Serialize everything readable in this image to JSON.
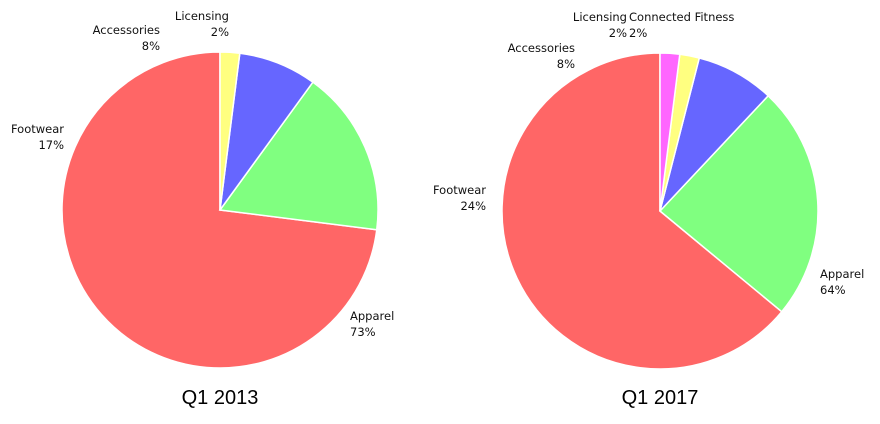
{
  "chart_data": [
    {
      "type": "pie",
      "title": "Q1 2013",
      "slices": [
        {
          "label": "Apparel",
          "value_label": "73%",
          "value": 73,
          "color": "#ff6666"
        },
        {
          "label": "Footwear",
          "value_label": "17%",
          "value": 17,
          "color": "#80ff80"
        },
        {
          "label": "Accessories",
          "value_label": "8%",
          "value": 8,
          "color": "#6666ff"
        },
        {
          "label": "Licensing",
          "value_label": "2%",
          "value": 2,
          "color": "#ffff80"
        }
      ]
    },
    {
      "type": "pie",
      "title": "Q1 2017",
      "slices": [
        {
          "label": "Apparel",
          "value_label": "64%",
          "value": 64,
          "color": "#ff6666"
        },
        {
          "label": "Footwear",
          "value_label": "24%",
          "value": 24,
          "color": "#80ff80"
        },
        {
          "label": "Accessories",
          "value_label": "8%",
          "value": 8,
          "color": "#6666ff"
        },
        {
          "label": "Licensing",
          "value_label": "2%",
          "value": 2,
          "color": "#ffff80"
        },
        {
          "label": "Connected Fitness",
          "value_label": "2%",
          "value": 2,
          "color": "#ff66ff"
        }
      ]
    }
  ]
}
